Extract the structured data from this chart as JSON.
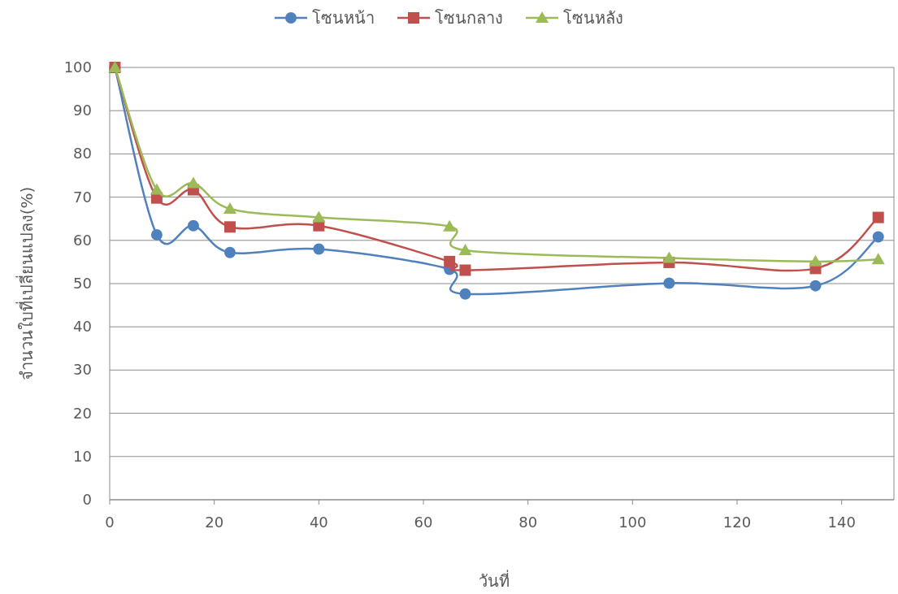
{
  "chart_data": {
    "type": "line",
    "xlabel": "วันที่",
    "ylabel": "จำนวนใบที่เปลี่ยนแปลง(%)",
    "x": [
      1,
      9,
      16,
      23,
      40,
      65,
      68,
      107,
      135,
      147
    ],
    "series": [
      {
        "name": "โซนหน้า",
        "color": "#4f81bd",
        "marker": "circle",
        "values": [
          100,
          61.3,
          63.4,
          57.2,
          58,
          53.3,
          47.6,
          50.1,
          49.5,
          60.8
        ]
      },
      {
        "name": "โซนกลาง",
        "color": "#c0504d",
        "marker": "square",
        "values": [
          100,
          69.8,
          71.7,
          63.1,
          63.4,
          55.1,
          53.1,
          54.9,
          53.5,
          65.3
        ]
      },
      {
        "name": "โซนหลัง",
        "color": "#9bbb59",
        "marker": "triangle",
        "values": [
          100,
          71.7,
          73.2,
          67.3,
          65.3,
          63.2,
          57.7,
          55.9,
          55.1,
          55.6
        ]
      }
    ],
    "xlim": [
      0,
      150
    ],
    "xticks": [
      0,
      20,
      40,
      60,
      80,
      100,
      120,
      140
    ],
    "ylim": [
      0,
      100
    ],
    "yticks": [
      0,
      10,
      20,
      30,
      40,
      50,
      60,
      70,
      80,
      90,
      100
    ],
    "grid": "y",
    "legend": "top",
    "line_style": "solid"
  }
}
